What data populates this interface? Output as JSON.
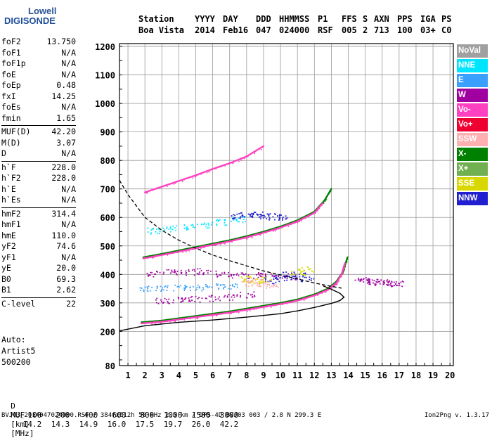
{
  "logo": {
    "line1": "Lowell",
    "line2": "DIGISONDE"
  },
  "header": {
    "station_label": "Station",
    "station_value": "Boa Vista",
    "yyyy_label": "YYYY",
    "yyyy_value": "2014",
    "day_label": "DAY",
    "day_value": "Feb16",
    "ddd_label": "DDD",
    "ddd_value": "047",
    "hhmmss_label": "HHMMSS",
    "hhmmss_value": "024000",
    "p1_label": "P1",
    "p1_value": "RSF",
    "ffs_label": "FFS",
    "ffs_value": "005",
    "s_label": "S",
    "s_value": "2",
    "axn_label": "AXN",
    "axn_value": "713",
    "pps_label": "PPS",
    "pps_value": "100",
    "iga_label": "IGA",
    "iga_value": "03+",
    "ps_label": "PS",
    "ps_value": "C0"
  },
  "params_groups": [
    [
      {
        "k": "foF2",
        "v": "13.750"
      },
      {
        "k": "foF1",
        "v": "N/A"
      },
      {
        "k": "foF1p",
        "v": "N/A"
      },
      {
        "k": "foE",
        "v": "N/A"
      },
      {
        "k": "foEp",
        "v": "0.48"
      },
      {
        "k": "fxI",
        "v": "14.25"
      },
      {
        "k": "foEs",
        "v": "N/A"
      },
      {
        "k": "fmin",
        "v": "1.65"
      }
    ],
    [
      {
        "k": "MUF(D)",
        "v": "42.20"
      },
      {
        "k": "M(D)",
        "v": "3.07"
      },
      {
        "k": "D",
        "v": "N/A"
      }
    ],
    [
      {
        "k": "h`F",
        "v": "228.0"
      },
      {
        "k": "h`F2",
        "v": "228.0"
      },
      {
        "k": "h`E",
        "v": "N/A"
      },
      {
        "k": "h`Es",
        "v": "N/A"
      }
    ],
    [
      {
        "k": "hmF2",
        "v": "314.4"
      },
      {
        "k": "hmF1",
        "v": "N/A"
      },
      {
        "k": "hmE",
        "v": "110.0"
      },
      {
        "k": "yF2",
        "v": "74.6"
      },
      {
        "k": "yF1",
        "v": "N/A"
      },
      {
        "k": "yE",
        "v": "20.0"
      },
      {
        "k": "B0",
        "v": "69.3"
      },
      {
        "k": "B1",
        "v": "2.62"
      }
    ],
    [
      {
        "k": "C-level",
        "v": "22"
      }
    ]
  ],
  "auto_block": {
    "line1": "Auto:",
    "line2": "Artist5",
    "line3": "500200"
  },
  "legend": [
    {
      "label": "NoVal",
      "color": "#a0a0a0"
    },
    {
      "label": "NNE",
      "color": "#00e5ff"
    },
    {
      "label": "E",
      "color": "#3aa0ff"
    },
    {
      "label": "W",
      "color": "#a000a0"
    },
    {
      "label": "Vo-",
      "color": "#ff40c0"
    },
    {
      "label": "Vo+",
      "color": "#ee0030"
    },
    {
      "label": "SSW",
      "color": "#ffb0b0"
    },
    {
      "label": "X-",
      "color": "#008000"
    },
    {
      "label": "X+",
      "color": "#70b050"
    },
    {
      "label": "SSE",
      "color": "#d8d800"
    },
    {
      "label": "NNW",
      "color": "#2020d0"
    }
  ],
  "footer": {
    "d_label": "D",
    "d_values": [
      "100",
      "200",
      "400",
      "600",
      "800",
      "1000",
      "1500",
      "3000"
    ],
    "d_unit": "[km]",
    "muf_label": "MUF",
    "muf_values": [
      "14.2",
      "14.3",
      "14.9",
      "16.0",
      "17.5",
      "19.7",
      "26.0",
      "42.2"
    ],
    "muf_unit": "[MHz]",
    "info": "BVJ03_2014047024000.RSF / 384fx512h 50 kHz 2.5 km / DPS-4D BVJ03 003 / 2.8 N 299.3 E",
    "version": "Ion2Png v. 1.3.17"
  },
  "chart_data": {
    "type": "scatter",
    "title": "",
    "xlabel": "",
    "ylabel": "",
    "xlim": [
      0.5,
      20.2
    ],
    "ylim": [
      80,
      1210
    ],
    "x_ticks": [
      1,
      2,
      3,
      4,
      5,
      6,
      7,
      8,
      9,
      10,
      11,
      12,
      13,
      14,
      15,
      16,
      17,
      18,
      19,
      20
    ],
    "y_ticks": [
      80,
      200,
      300,
      400,
      500,
      600,
      700,
      800,
      900,
      1000,
      1100,
      1200
    ],
    "grid": true,
    "series": [
      {
        "name": "X-",
        "color": "#008000",
        "kind": "trace",
        "x": [
          1.8,
          3,
          4,
          5,
          6,
          7,
          8,
          9,
          10,
          11,
          12,
          12.8,
          13.3,
          13.7,
          13.95
        ],
        "y": [
          232,
          238,
          246,
          254,
          262,
          270,
          280,
          290,
          300,
          312,
          330,
          350,
          375,
          410,
          460
        ]
      },
      {
        "name": "Vo-",
        "color": "#ff40c0",
        "kind": "trace",
        "x": [
          1.8,
          3,
          4,
          5,
          6,
          7,
          8,
          9,
          10,
          11,
          12,
          12.8,
          13.3,
          13.6,
          13.8
        ],
        "y": [
          228,
          234,
          242,
          250,
          258,
          266,
          276,
          286,
          296,
          308,
          326,
          346,
          370,
          400,
          440
        ]
      },
      {
        "name": "X-",
        "color": "#008000",
        "kind": "trace",
        "x": [
          1.9,
          3,
          4,
          5,
          6,
          7,
          8,
          9,
          10,
          11,
          12,
          12.6,
          13.0
        ],
        "y": [
          460,
          472,
          484,
          496,
          508,
          520,
          534,
          550,
          568,
          590,
          620,
          660,
          700
        ]
      },
      {
        "name": "Vo-",
        "color": "#ff40c0",
        "kind": "trace",
        "x": [
          1.9,
          3,
          4,
          5,
          6,
          7,
          8,
          9,
          10,
          11,
          12,
          12.5
        ],
        "y": [
          456,
          468,
          480,
          492,
          504,
          516,
          530,
          546,
          564,
          586,
          616,
          650
        ]
      },
      {
        "name": "Vo-",
        "color": "#ff40c0",
        "kind": "trace",
        "x": [
          2,
          3,
          4,
          5,
          6,
          7,
          8,
          9
        ],
        "y": [
          688,
          708,
          728,
          748,
          770,
          790,
          814,
          850
        ]
      },
      {
        "name": "W",
        "color": "#a000a0",
        "kind": "cluster",
        "x": [
          2.5,
          3.5,
          4.5,
          5.5,
          6.5,
          7.5,
          8.5,
          9.5,
          10.5
        ],
        "y": [
          405,
          408,
          410,
          412,
          404,
          400,
          398,
          396,
          394
        ]
      },
      {
        "name": "W",
        "color": "#a000a0",
        "kind": "cluster",
        "x": [
          3,
          4,
          5,
          6,
          7,
          8
        ],
        "y": [
          310,
          312,
          314,
          318,
          322,
          330
        ]
      },
      {
        "name": "W",
        "color": "#a000a0",
        "kind": "cluster",
        "x": [
          14.8,
          15.2,
          15.6,
          16,
          16.4,
          16.8
        ],
        "y": [
          382,
          378,
          374,
          372,
          370,
          368
        ]
      },
      {
        "name": "NNW",
        "color": "#2020d0",
        "kind": "cluster",
        "x": [
          9.5,
          10,
          10.5,
          11,
          11.5
        ],
        "y": [
          380,
          392,
          400,
          396,
          388
        ]
      },
      {
        "name": "NNW",
        "color": "#2020d0",
        "kind": "cluster",
        "x": [
          7.5,
          8,
          8.5,
          9,
          9.5,
          10
        ],
        "y": [
          606,
          610,
          612,
          608,
          604,
          600
        ]
      },
      {
        "name": "E",
        "color": "#3aa0ff",
        "kind": "cluster",
        "x": [
          2,
          3,
          4,
          5,
          6,
          7
        ],
        "y": [
          350,
          352,
          354,
          356,
          358,
          360
        ]
      },
      {
        "name": "NNE",
        "color": "#00e5ff",
        "kind": "cluster",
        "x": [
          2.5,
          3.5,
          4.5,
          5.5,
          6.5,
          7.5
        ],
        "y": [
          555,
          562,
          568,
          575,
          585,
          595
        ]
      },
      {
        "name": "SSE",
        "color": "#d8d800",
        "kind": "cluster",
        "x": [
          8,
          8.5,
          9,
          11,
          11.5
        ],
        "y": [
          385,
          380,
          384,
          410,
          420
        ]
      },
      {
        "name": "SSW",
        "color": "#ffb0b0",
        "kind": "cluster",
        "x": [
          8,
          8.5,
          9,
          9.5
        ],
        "y": [
          370,
          374,
          368,
          364
        ]
      }
    ],
    "profile_solid": {
      "x": [
        0.5,
        2,
        4,
        6,
        8,
        10,
        11,
        12,
        13,
        13.5,
        13.75,
        13.5,
        13,
        12.5
      ],
      "y": [
        202,
        220,
        232,
        240,
        250,
        262,
        272,
        284,
        298,
        308,
        320,
        334,
        348,
        360
      ]
    },
    "profile_dashed": {
      "x": [
        0.5,
        1,
        2,
        3,
        4,
        5,
        6,
        7,
        8,
        9,
        10,
        11,
        12,
        13,
        13.6
      ],
      "y": [
        730,
        680,
        600,
        555,
        520,
        492,
        468,
        448,
        430,
        412,
        398,
        384,
        370,
        358,
        352
      ]
    }
  }
}
